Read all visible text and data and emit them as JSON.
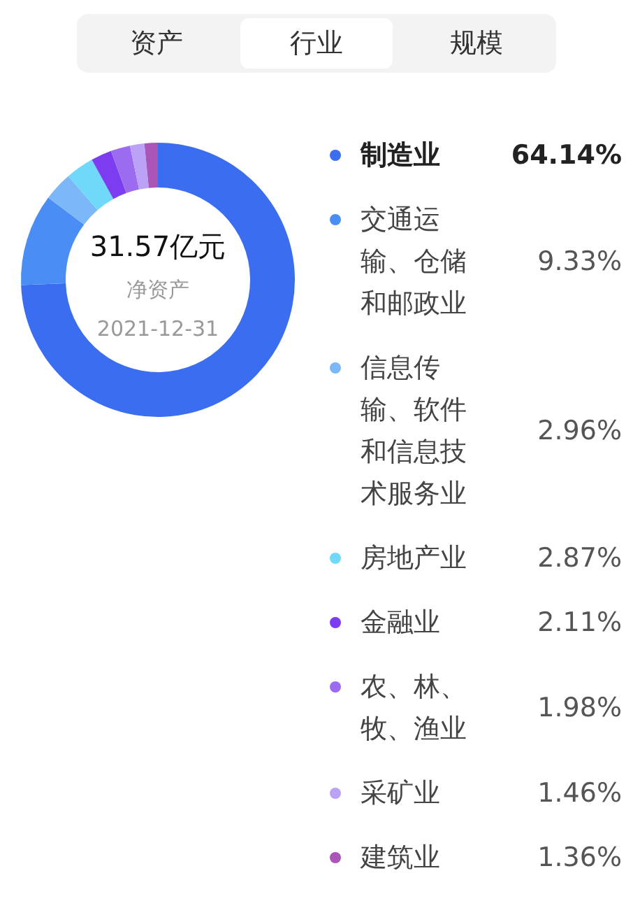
{
  "chart_data": {
    "type": "donut",
    "title": "31.57亿元",
    "subtitle": "净资产",
    "annotations": [
      "2021-12-31",
      "资产",
      "行业",
      "规模"
    ],
    "categories": [
      "制造业",
      "交通运输、仓储和邮政业",
      "信息传输、软件和信息技术服务业",
      "房地产业",
      "金融业",
      "农、林、牧、渔业",
      "采矿业",
      "建筑业"
    ],
    "values": [
      64.14,
      9.33,
      2.96,
      2.87,
      2.11,
      1.98,
      1.46,
      1.36
    ],
    "value_labels": [
      "64.14%",
      "9.33%",
      "2.96%",
      "2.87%",
      "2.11%",
      "1.98%",
      "1.46%",
      "1.36%"
    ],
    "colors": [
      "#3a6df0",
      "#4a8ef5",
      "#7cb8f7",
      "#70d8f8",
      "#7c3cf0",
      "#9b6cf0",
      "#bba2f6",
      "#a956b8"
    ],
    "legend": "right"
  }
}
